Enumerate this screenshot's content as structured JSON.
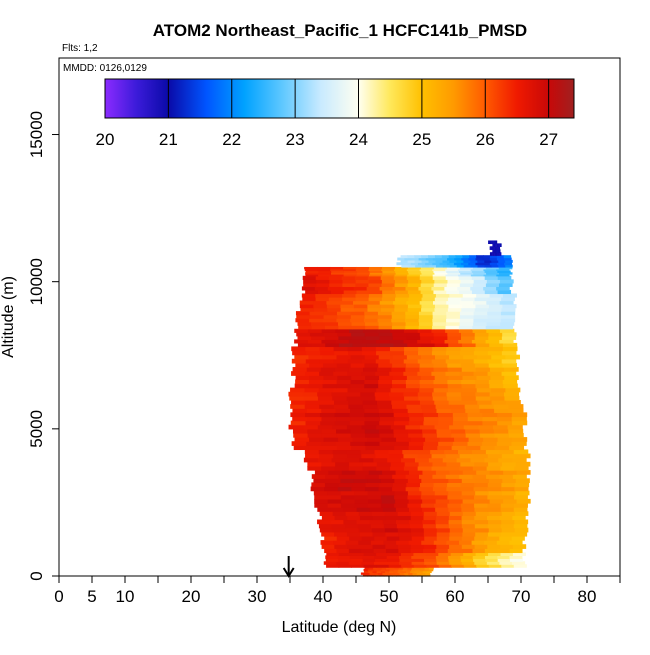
{
  "chart_data": {
    "type": "heatmap",
    "title": "ATOM2 Northeast_Pacific_1 HCFC141b_PMSD",
    "subtitle": "Flts: 1,2",
    "annotation": "MMDD: 0126,0129",
    "xlabel": "Latitude (deg N)",
    "ylabel": "Altitude (m)",
    "xlim": [
      0,
      85
    ],
    "ylim": [
      0,
      17600
    ],
    "x_ticks_labeled": [
      0,
      5,
      10,
      20,
      30,
      40,
      50,
      60,
      70,
      80
    ],
    "x_ticks_minor": [
      15,
      25,
      35,
      45,
      55,
      65,
      75,
      85
    ],
    "y_ticks": [
      0,
      5000,
      10000,
      15000
    ],
    "arrow_latitude": 34.8,
    "colorbar": {
      "min": 20,
      "max": 27.4,
      "tick_values": [
        20,
        21,
        22,
        23,
        24,
        25,
        26,
        27
      ],
      "tick_labels": [
        "20",
        "21",
        "22",
        "23",
        "24",
        "25",
        "26",
        "27"
      ],
      "stops": [
        {
          "v": 20.0,
          "c": "#8B2BFF"
        },
        {
          "v": 20.5,
          "c": "#3B1BD9"
        },
        {
          "v": 21.0,
          "c": "#0A0AA8"
        },
        {
          "v": 21.6,
          "c": "#0055FF"
        },
        {
          "v": 22.2,
          "c": "#00A2FF"
        },
        {
          "v": 22.8,
          "c": "#5FC8FF"
        },
        {
          "v": 23.4,
          "c": "#C8EAFF"
        },
        {
          "v": 24.0,
          "c": "#FFFFF0"
        },
        {
          "v": 24.5,
          "c": "#FFE85A"
        },
        {
          "v": 25.0,
          "c": "#FFC000"
        },
        {
          "v": 25.5,
          "c": "#FF9A00"
        },
        {
          "v": 26.0,
          "c": "#FF5A00"
        },
        {
          "v": 26.5,
          "c": "#F01A00"
        },
        {
          "v": 27.0,
          "c": "#C80808"
        },
        {
          "v": 27.4,
          "c": "#A02020"
        }
      ]
    },
    "profile_rows": [
      {
        "alt_min": 0,
        "alt_max": 300,
        "lat_start": 46.0,
        "lat_end": 56.5,
        "values": [
          26.4,
          26.0,
          25.4
        ]
      },
      {
        "alt_min": 300,
        "alt_max": 800,
        "lat_start": 40.5,
        "lat_end": 70.5,
        "values": [
          26.5,
          26.7,
          26.6,
          26.2,
          25.5,
          24.6,
          24.0
        ]
      },
      {
        "alt_min": 800,
        "alt_max": 1500,
        "lat_start": 40.0,
        "lat_end": 70.5,
        "values": [
          26.4,
          26.7,
          26.8,
          26.5,
          25.9,
          25.3,
          25.0
        ]
      },
      {
        "alt_min": 1500,
        "alt_max": 2200,
        "lat_start": 39.5,
        "lat_end": 71.0,
        "values": [
          26.6,
          26.8,
          26.9,
          26.5,
          25.9,
          25.4,
          25.1
        ]
      },
      {
        "alt_min": 2200,
        "alt_max": 2900,
        "lat_start": 39.0,
        "lat_end": 71.0,
        "values": [
          26.7,
          26.9,
          27.0,
          26.4,
          25.9,
          25.5,
          25.2
        ]
      },
      {
        "alt_min": 2900,
        "alt_max": 3600,
        "lat_start": 38.5,
        "lat_end": 71.0,
        "values": [
          26.8,
          27.0,
          26.9,
          26.3,
          25.8,
          25.6,
          25.3
        ]
      },
      {
        "alt_min": 3600,
        "alt_max": 4300,
        "lat_start": 37.5,
        "lat_end": 71.0,
        "values": [
          26.6,
          26.8,
          26.7,
          26.2,
          25.8,
          25.5,
          25.2
        ]
      },
      {
        "alt_min": 4300,
        "alt_max": 5000,
        "lat_start": 35.5,
        "lat_end": 70.5,
        "values": [
          26.5,
          26.7,
          26.9,
          26.6,
          26.0,
          25.6,
          25.3
        ]
      },
      {
        "alt_min": 5000,
        "alt_max": 5700,
        "lat_start": 35.0,
        "lat_end": 70.5,
        "values": [
          26.4,
          26.8,
          27.0,
          26.5,
          26.0,
          25.7,
          25.4
        ]
      },
      {
        "alt_min": 5700,
        "alt_max": 6400,
        "lat_start": 35.0,
        "lat_end": 70.0,
        "values": [
          26.3,
          26.6,
          26.8,
          26.4,
          25.9,
          25.6,
          25.3
        ]
      },
      {
        "alt_min": 6400,
        "alt_max": 7100,
        "lat_start": 35.5,
        "lat_end": 69.5,
        "values": [
          26.5,
          26.7,
          26.9,
          26.3,
          25.8,
          25.5,
          25.0
        ]
      },
      {
        "alt_min": 7100,
        "alt_max": 7800,
        "lat_start": 35.5,
        "lat_end": 69.5,
        "values": [
          26.4,
          26.6,
          26.7,
          26.1,
          25.6,
          25.3,
          24.8
        ]
      },
      {
        "alt_min": 7800,
        "alt_max": 8400,
        "lat_start": 36.0,
        "lat_end": 69.0,
        "values": [
          26.6,
          27.0,
          27.2,
          27.0,
          26.5,
          25.5,
          24.6
        ]
      },
      {
        "alt_min": 8400,
        "alt_max": 9000,
        "lat_start": 36.0,
        "lat_end": 69.0,
        "values": [
          26.5,
          26.3,
          26.0,
          25.4,
          24.3,
          23.6,
          23.4
        ]
      },
      {
        "alt_min": 9000,
        "alt_max": 9600,
        "lat_start": 36.5,
        "lat_end": 69.0,
        "values": [
          26.6,
          26.2,
          25.8,
          25.2,
          24.2,
          23.8,
          23.3
        ]
      },
      {
        "alt_min": 9600,
        "alt_max": 10200,
        "lat_start": 37.0,
        "lat_end": 68.5,
        "values": [
          26.8,
          26.5,
          26.2,
          25.4,
          24.2,
          23.6,
          22.5
        ]
      },
      {
        "alt_min": 10200,
        "alt_max": 10500,
        "lat_start": 37.5,
        "lat_end": 68.5,
        "values": [
          26.6,
          26.3,
          25.9,
          25.0,
          24.0,
          23.1,
          22.3
        ]
      },
      {
        "alt_min": 10500,
        "alt_max": 10900,
        "lat_start": 51.5,
        "lat_end": 68.5,
        "values": [
          23.4,
          23.0,
          22.4,
          21.2,
          22.0
        ]
      },
      {
        "alt_min": 10900,
        "alt_max": 11400,
        "lat_start": 65.3,
        "lat_end": 66.7,
        "values": [
          21.0
        ]
      }
    ]
  }
}
